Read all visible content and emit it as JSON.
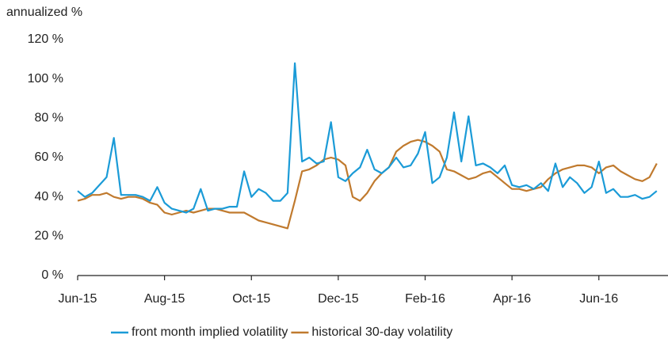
{
  "chart_data": {
    "type": "line",
    "ylabel": "annualized %",
    "categories": [
      "Jun-15",
      null,
      null,
      null,
      null,
      null,
      null,
      null,
      null,
      null,
      null,
      null,
      "Aug-15",
      null,
      null,
      null,
      null,
      null,
      null,
      null,
      null,
      null,
      null,
      null,
      "Oct-15",
      null,
      null,
      null,
      null,
      null,
      null,
      null,
      null,
      null,
      null,
      null,
      "Dec-15",
      null,
      null,
      null,
      null,
      null,
      null,
      null,
      null,
      null,
      null,
      null,
      "Feb-16",
      null,
      null,
      null,
      null,
      null,
      null,
      null,
      null,
      null,
      null,
      null,
      "Apr-16",
      null,
      null,
      null,
      null,
      null,
      null,
      null,
      null,
      null,
      null,
      null,
      "Jun-16",
      null,
      null,
      null,
      null,
      null,
      null,
      null,
      null
    ],
    "series": [
      {
        "name": "front month implied volatility",
        "color": "#1b9bd7",
        "values": [
          43,
          40,
          42,
          46,
          50,
          70,
          41,
          41,
          41,
          40,
          38,
          45,
          37,
          34,
          33,
          32,
          34,
          44,
          33,
          34,
          34,
          35,
          35,
          53,
          40,
          44,
          42,
          38,
          38,
          42,
          108,
          58,
          60,
          57,
          58,
          78,
          50,
          48,
          52,
          55,
          64,
          54,
          52,
          55,
          60,
          55,
          56,
          62,
          73,
          47,
          50,
          60,
          83,
          58,
          81,
          56,
          57,
          55,
          52,
          56,
          46,
          45,
          46,
          44,
          47,
          43,
          57,
          45,
          50,
          47,
          42,
          45,
          58,
          42,
          44,
          40,
          40,
          41,
          39,
          40,
          43
        ]
      },
      {
        "name": "historical 30-day volatility",
        "color": "#c07a2e",
        "values": [
          38,
          39,
          41,
          41,
          42,
          40,
          39,
          40,
          40,
          39,
          37,
          36,
          32,
          31,
          32,
          33,
          32,
          33,
          34,
          34,
          33,
          32,
          32,
          32,
          30,
          28,
          27,
          26,
          25,
          24,
          38,
          53,
          54,
          56,
          59,
          60,
          59,
          56,
          40,
          38,
          42,
          48,
          52,
          55,
          63,
          66,
          68,
          69,
          68,
          66,
          63,
          54,
          53,
          51,
          49,
          50,
          52,
          53,
          50,
          47,
          44,
          44,
          43,
          44,
          45,
          49,
          52,
          54,
          55,
          56,
          56,
          55,
          52,
          55,
          56,
          53,
          51,
          49,
          48,
          50,
          57
        ]
      }
    ],
    "ylim": [
      0,
      120
    ],
    "yticks": [
      {
        "value": 0,
        "label": "0 %"
      },
      {
        "value": 20,
        "label": "20 %"
      },
      {
        "value": 40,
        "label": "40 %"
      },
      {
        "value": 60,
        "label": "60 %"
      },
      {
        "value": 80,
        "label": "80 %"
      },
      {
        "value": 100,
        "label": "100 %"
      },
      {
        "value": 120,
        "label": "120 %"
      }
    ],
    "grid": false,
    "legend": "bottom"
  }
}
